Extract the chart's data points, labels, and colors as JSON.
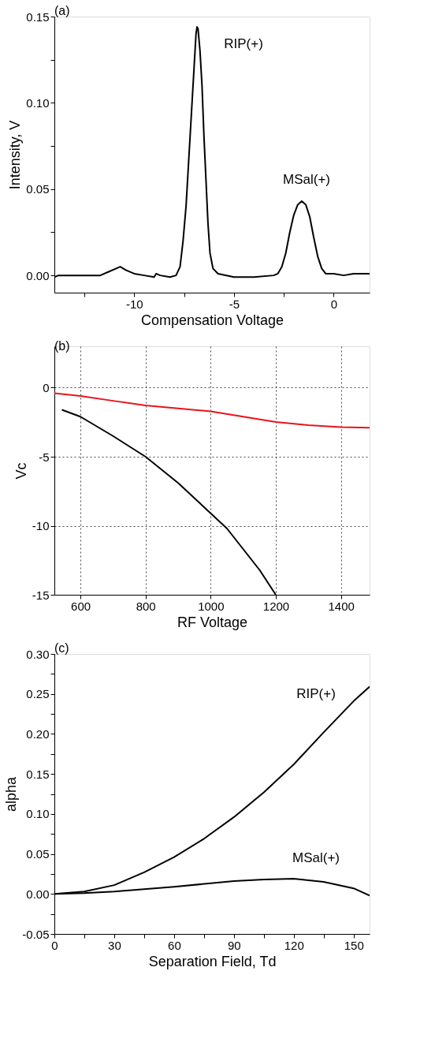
{
  "chart_data": [
    {
      "type": "line",
      "title": "(a)",
      "xlabel": "Compensation Voltage",
      "ylabel": "Intensity, V",
      "xlim": [
        -14,
        1.8
      ],
      "ylim": [
        -0.01,
        0.15
      ],
      "xticks": [
        {
          "value": -12.5,
          "label": null
        },
        -10,
        {
          "value": -7.5,
          "label": null
        },
        -5,
        {
          "value": -2.5,
          "label": null
        },
        0
      ],
      "yticks": [
        {
          "value": 0,
          "label": "0.00"
        },
        {
          "value": 0.025,
          "label": null
        },
        {
          "value": 0.05,
          "label": "0.05"
        },
        {
          "value": 0.075,
          "label": null
        },
        {
          "value": 0.1,
          "label": "0.10"
        },
        {
          "value": 0.125,
          "label": null
        },
        {
          "value": 0.15,
          "label": "0.15"
        }
      ],
      "grid": false,
      "legend": false,
      "series": [
        {
          "color": "#000000",
          "x": [
            -14,
            -13.8,
            -13.5,
            -12.5,
            -11.7,
            -11.3,
            -10.9,
            -10.7,
            -10.4,
            -10.0,
            -9.5,
            -9.0,
            -8.9,
            -8.7,
            -8.2,
            -7.9,
            -7.7,
            -7.55,
            -7.4,
            -7.3,
            -7.2,
            -7.1,
            -7.0,
            -6.9,
            -6.85,
            -6.8,
            -6.7,
            -6.6,
            -6.5,
            -6.4,
            -6.3,
            -6.2,
            -6.05,
            -5.8,
            -5.0,
            -4.0,
            -3.0,
            -2.8,
            -2.6,
            -2.4,
            -2.2,
            -2.0,
            -1.8,
            -1.6,
            -1.4,
            -1.2,
            -1.0,
            -0.8,
            -0.6,
            -0.4,
            0,
            0.5,
            1.0,
            1.8
          ],
          "values": [
            -0.001,
            0.0,
            0.0,
            0.0,
            0.0,
            0.002,
            0.004,
            0.005,
            0.003,
            0.001,
            0.0,
            -0.001,
            0.001,
            0.0,
            -0.001,
            0.0,
            0.005,
            0.02,
            0.04,
            0.06,
            0.08,
            0.1,
            0.12,
            0.14,
            0.144,
            0.143,
            0.13,
            0.11,
            0.08,
            0.055,
            0.03,
            0.013,
            0.004,
            0.001,
            -0.001,
            -0.001,
            0.0,
            0.001,
            0.005,
            0.013,
            0.025,
            0.035,
            0.041,
            0.043,
            0.041,
            0.034,
            0.022,
            0.011,
            0.004,
            0.001,
            0.001,
            0.0,
            0.001,
            0.001
          ]
        }
      ],
      "annotations": [
        "RIP(+)",
        "MSal(+)"
      ]
    },
    {
      "type": "line",
      "title": "(b)",
      "xlabel": "RF Voltage",
      "ylabel": "Vc",
      "xlim": [
        520,
        1488
      ],
      "ylim": [
        -15,
        3
      ],
      "xticks": [
        600,
        800,
        1000,
        1200,
        1400
      ],
      "yticks": [
        -15,
        -10,
        -5,
        0
      ],
      "grid": true,
      "legend": false,
      "series": [
        {
          "color": "#e8141c",
          "x": [
            520,
            600,
            700,
            800,
            900,
            1000,
            1100,
            1200,
            1300,
            1400,
            1488
          ],
          "values": [
            -0.4,
            -0.6,
            -0.95,
            -1.28,
            -1.5,
            -1.72,
            -2.1,
            -2.48,
            -2.71,
            -2.86,
            -2.9
          ]
        },
        {
          "color": "#000000",
          "x": [
            543,
            600,
            700,
            800,
            900,
            1000,
            1050,
            1100,
            1150,
            1200
          ],
          "values": [
            -1.6,
            -2.1,
            -3.5,
            -5.0,
            -6.9,
            -9.1,
            -10.2,
            -11.7,
            -13.2,
            -15.0
          ]
        }
      ]
    },
    {
      "type": "line",
      "title": "(c)",
      "xlabel": "Separation Field, Td",
      "ylabel": "alpha",
      "xlim": [
        0,
        158
      ],
      "ylim": [
        -0.05,
        0.3
      ],
      "xticks": [
        0,
        {
          "value": 15,
          "label": null
        },
        30,
        {
          "value": 45,
          "label": null
        },
        60,
        {
          "value": 75,
          "label": null
        },
        90,
        {
          "value": 105,
          "label": null
        },
        120,
        {
          "value": 135,
          "label": null
        },
        150
      ],
      "yticks": [
        {
          "value": -0.05,
          "label": "-0.05"
        },
        {
          "value": -0.025,
          "label": null
        },
        {
          "value": 0,
          "label": "0.00"
        },
        {
          "value": 0.025,
          "label": null
        },
        {
          "value": 0.05,
          "label": "0.05"
        },
        {
          "value": 0.075,
          "label": null
        },
        {
          "value": 0.1,
          "label": "0.10"
        },
        {
          "value": 0.125,
          "label": null
        },
        {
          "value": 0.15,
          "label": "0.15"
        },
        {
          "value": 0.175,
          "label": null
        },
        {
          "value": 0.2,
          "label": "0.20"
        },
        {
          "value": 0.225,
          "label": null
        },
        {
          "value": 0.25,
          "label": "0.25"
        },
        {
          "value": 0.275,
          "label": null
        },
        {
          "value": 0.3,
          "label": "0.30"
        }
      ],
      "grid": false,
      "legend": false,
      "series": [
        {
          "color": "#000000",
          "x": [
            0,
            15,
            30,
            45,
            60,
            75,
            90,
            105,
            120,
            135,
            150,
            158
          ],
          "values": [
            0,
            0.003,
            0.011,
            0.027,
            0.046,
            0.069,
            0.096,
            0.127,
            0.162,
            0.202,
            0.241,
            0.259
          ]
        },
        {
          "color": "#000000",
          "x": [
            0,
            15,
            30,
            60,
            90,
            105,
            120,
            135,
            150,
            158
          ],
          "values": [
            0,
            0.001,
            0.003,
            0.009,
            0.016,
            0.018,
            0.019,
            0.015,
            0.007,
            -0.002
          ]
        }
      ],
      "annotations": [
        "RIP(+)",
        "MSal(+)"
      ]
    }
  ]
}
